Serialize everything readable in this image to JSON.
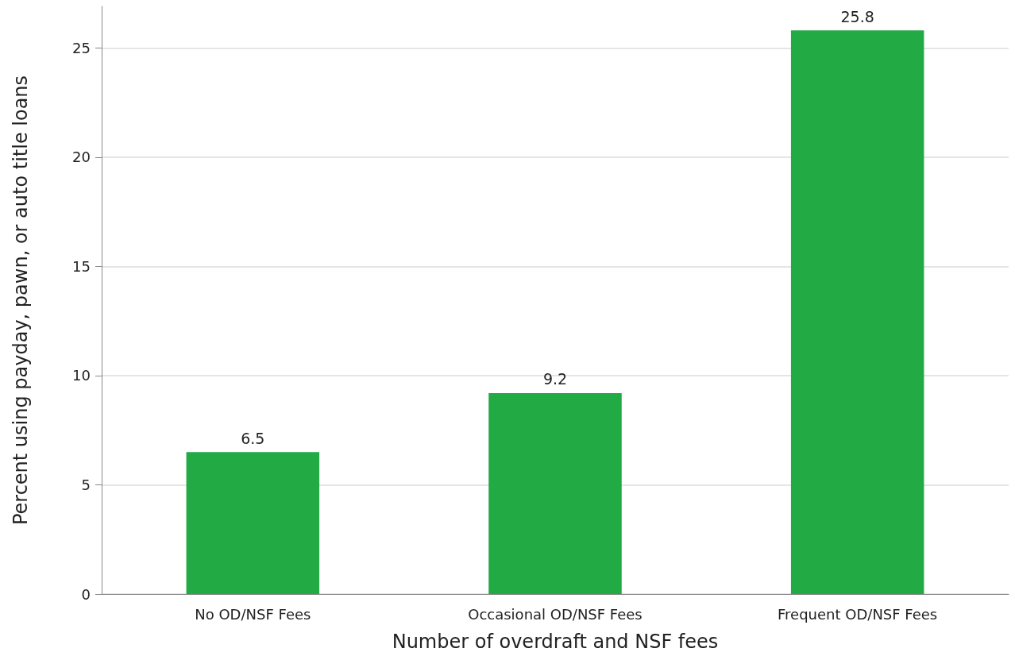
{
  "chart_data": {
    "type": "bar",
    "xlabel": "Number of overdraft and NSF fees",
    "ylabel": "Percent using payday, pawn, or auto title loans",
    "categories": [
      "No OD/NSF Fees",
      "Occasional OD/NSF Fees",
      "Frequent OD/NSF Fees"
    ],
    "values": [
      6.5,
      9.2,
      25.8
    ],
    "color": "#22aa44",
    "ylim": [
      0,
      26.9
    ],
    "yticks": [
      0,
      5,
      10,
      15,
      20,
      25
    ],
    "grid": "y",
    "data_labels": true
  }
}
